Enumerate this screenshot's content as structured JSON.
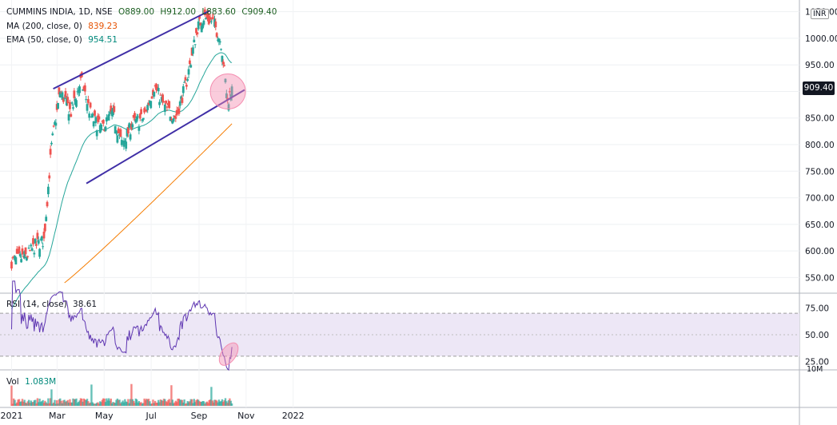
{
  "header": {
    "symbol": "CUMMINS INDIA, 1D, NSE",
    "open": "O889.00",
    "high": "H912.00",
    "low": "L883.60",
    "close": "C909.40"
  },
  "indicators": {
    "ma_label": "MA (200, close, 0)",
    "ma_value": "839.23",
    "ema_label": "EMA (50, close, 0)",
    "ema_value": "954.51",
    "rsi_label": "RSI (14, close)",
    "rsi_value": "38.61",
    "vol_label": "Vol",
    "vol_value": "1.083M"
  },
  "price_axis": {
    "currency": "INR",
    "last_price": "909.40",
    "vol_unit": "10M"
  },
  "colors": {
    "up": "#26a69a",
    "down": "#ef5350",
    "ma200": "#f57c00",
    "ema50": "#26a69a",
    "rsi": "#5e35b1",
    "trendline": "#3f2ea6",
    "highlight": "#f48fb1"
  },
  "chart_data": [
    {
      "type": "candlestick",
      "x_ticks": [
        "2021",
        "Mar",
        "May",
        "Jul",
        "Sep",
        "Nov",
        "2022"
      ],
      "y_ticks": [
        550,
        600,
        650,
        700,
        750,
        800,
        850,
        900,
        950,
        1000,
        1050
      ],
      "ylim": [
        510,
        1060
      ],
      "grid": true,
      "candles_note": "daily OHLC, ~195 sessions Jan–Oct 2021",
      "anchors": {
        "dates": [
          "2021-01-01",
          "2021-01-20",
          "2021-02-01",
          "2021-02-12",
          "2021-02-22",
          "2021-03-05",
          "2021-03-19",
          "2021-04-01",
          "2021-04-15",
          "2021-04-28",
          "2021-05-12",
          "2021-05-24",
          "2021-06-07",
          "2021-06-21",
          "2021-07-05",
          "2021-07-19",
          "2021-08-02",
          "2021-08-16",
          "2021-08-30",
          "2021-09-07",
          "2021-09-20",
          "2021-09-30",
          "2021-10-08",
          "2021-10-14"
        ],
        "close": [
          580,
          590,
          610,
          620,
          800,
          900,
          860,
          920,
          850,
          830,
          860,
          800,
          840,
          850,
          910,
          870,
          850,
          920,
          1020,
          1040,
          1030,
          990,
          880,
          909.4
        ]
      },
      "ma200_last": 839.23,
      "ema50_last": 954.51,
      "trendlines": [
        {
          "name": "upper channel",
          "from": [
            "2021-02-24",
            905
          ],
          "to": [
            "2021-09-15",
            1052
          ]
        },
        {
          "name": "lower channel",
          "from": [
            "2021-04-08",
            727
          ],
          "to": [
            "2021-10-30",
            903
          ]
        }
      ]
    },
    {
      "type": "line",
      "name": "RSI (14, close)",
      "y_ticks": [
        25,
        50,
        75
      ],
      "bands": [
        30,
        70
      ],
      "last": 38.61
    },
    {
      "type": "bar",
      "name": "Vol",
      "last": "1.083M"
    }
  ]
}
